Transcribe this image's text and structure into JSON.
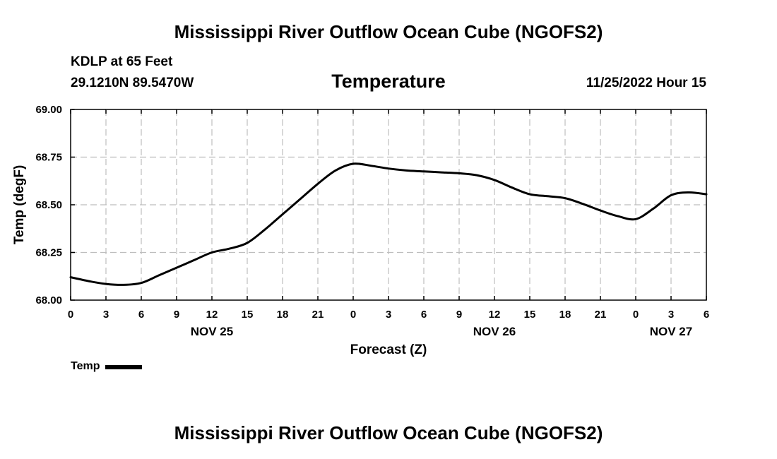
{
  "page": {
    "top_title": "Mississippi River Outflow Ocean Cube (NGOFS2)",
    "bottom_title": "Mississippi River Outflow Ocean Cube (NGOFS2)",
    "station": "KDLP at 65 Feet",
    "coords": "29.1210N  89.5470W",
    "timestamp": "11/25/2022 Hour 15"
  },
  "chart_data": {
    "type": "line",
    "title": "Temperature",
    "xlabel": "Forecast (Z)",
    "ylabel": "Temp (degF)",
    "x_hours": [
      0,
      3,
      6,
      9,
      12,
      15,
      18,
      21,
      24,
      27,
      30,
      33,
      36,
      39,
      42,
      45,
      48,
      51,
      54
    ],
    "xlim": [
      0,
      54
    ],
    "ylim": [
      68.0,
      69.0
    ],
    "y_ticks": [
      "68.00",
      "68.25",
      "68.50",
      "68.75",
      "69.00"
    ],
    "y_tick_values": [
      68.0,
      68.25,
      68.5,
      68.75,
      69.0
    ],
    "x_tick_labels": [
      "0",
      "3",
      "6",
      "9",
      "12",
      "15",
      "18",
      "21",
      "0",
      "3",
      "6",
      "9",
      "12",
      "15",
      "18",
      "21",
      "0",
      "3",
      "6"
    ],
    "day_labels": [
      {
        "label": "NOV 25",
        "hour": 12
      },
      {
        "label": "NOV 26",
        "hour": 36
      },
      {
        "label": "NOV 27",
        "hour": 51
      }
    ],
    "grid": true,
    "legend": "bottom-left",
    "series": [
      {
        "name": "Temp",
        "color": "#000000",
        "x": [
          0,
          1.5,
          3,
          4.5,
          6,
          7.5,
          9,
          10.5,
          12,
          13.5,
          15,
          16.5,
          18,
          19.5,
          21,
          22.5,
          24,
          25.5,
          27,
          28.5,
          30,
          31.5,
          33,
          34.5,
          36,
          37.5,
          39,
          40.5,
          42,
          43.5,
          45,
          46.5,
          48,
          49.5,
          51,
          52.5,
          54
        ],
        "values": [
          68.12,
          68.1,
          68.085,
          68.08,
          68.09,
          68.13,
          68.17,
          68.21,
          68.25,
          68.27,
          68.3,
          68.37,
          68.45,
          68.53,
          68.61,
          68.68,
          68.715,
          68.705,
          68.69,
          68.68,
          68.675,
          68.67,
          68.665,
          68.655,
          68.63,
          68.59,
          68.555,
          68.545,
          68.535,
          68.505,
          68.47,
          68.44,
          68.425,
          68.48,
          68.55,
          68.565,
          68.555
        ]
      }
    ]
  }
}
